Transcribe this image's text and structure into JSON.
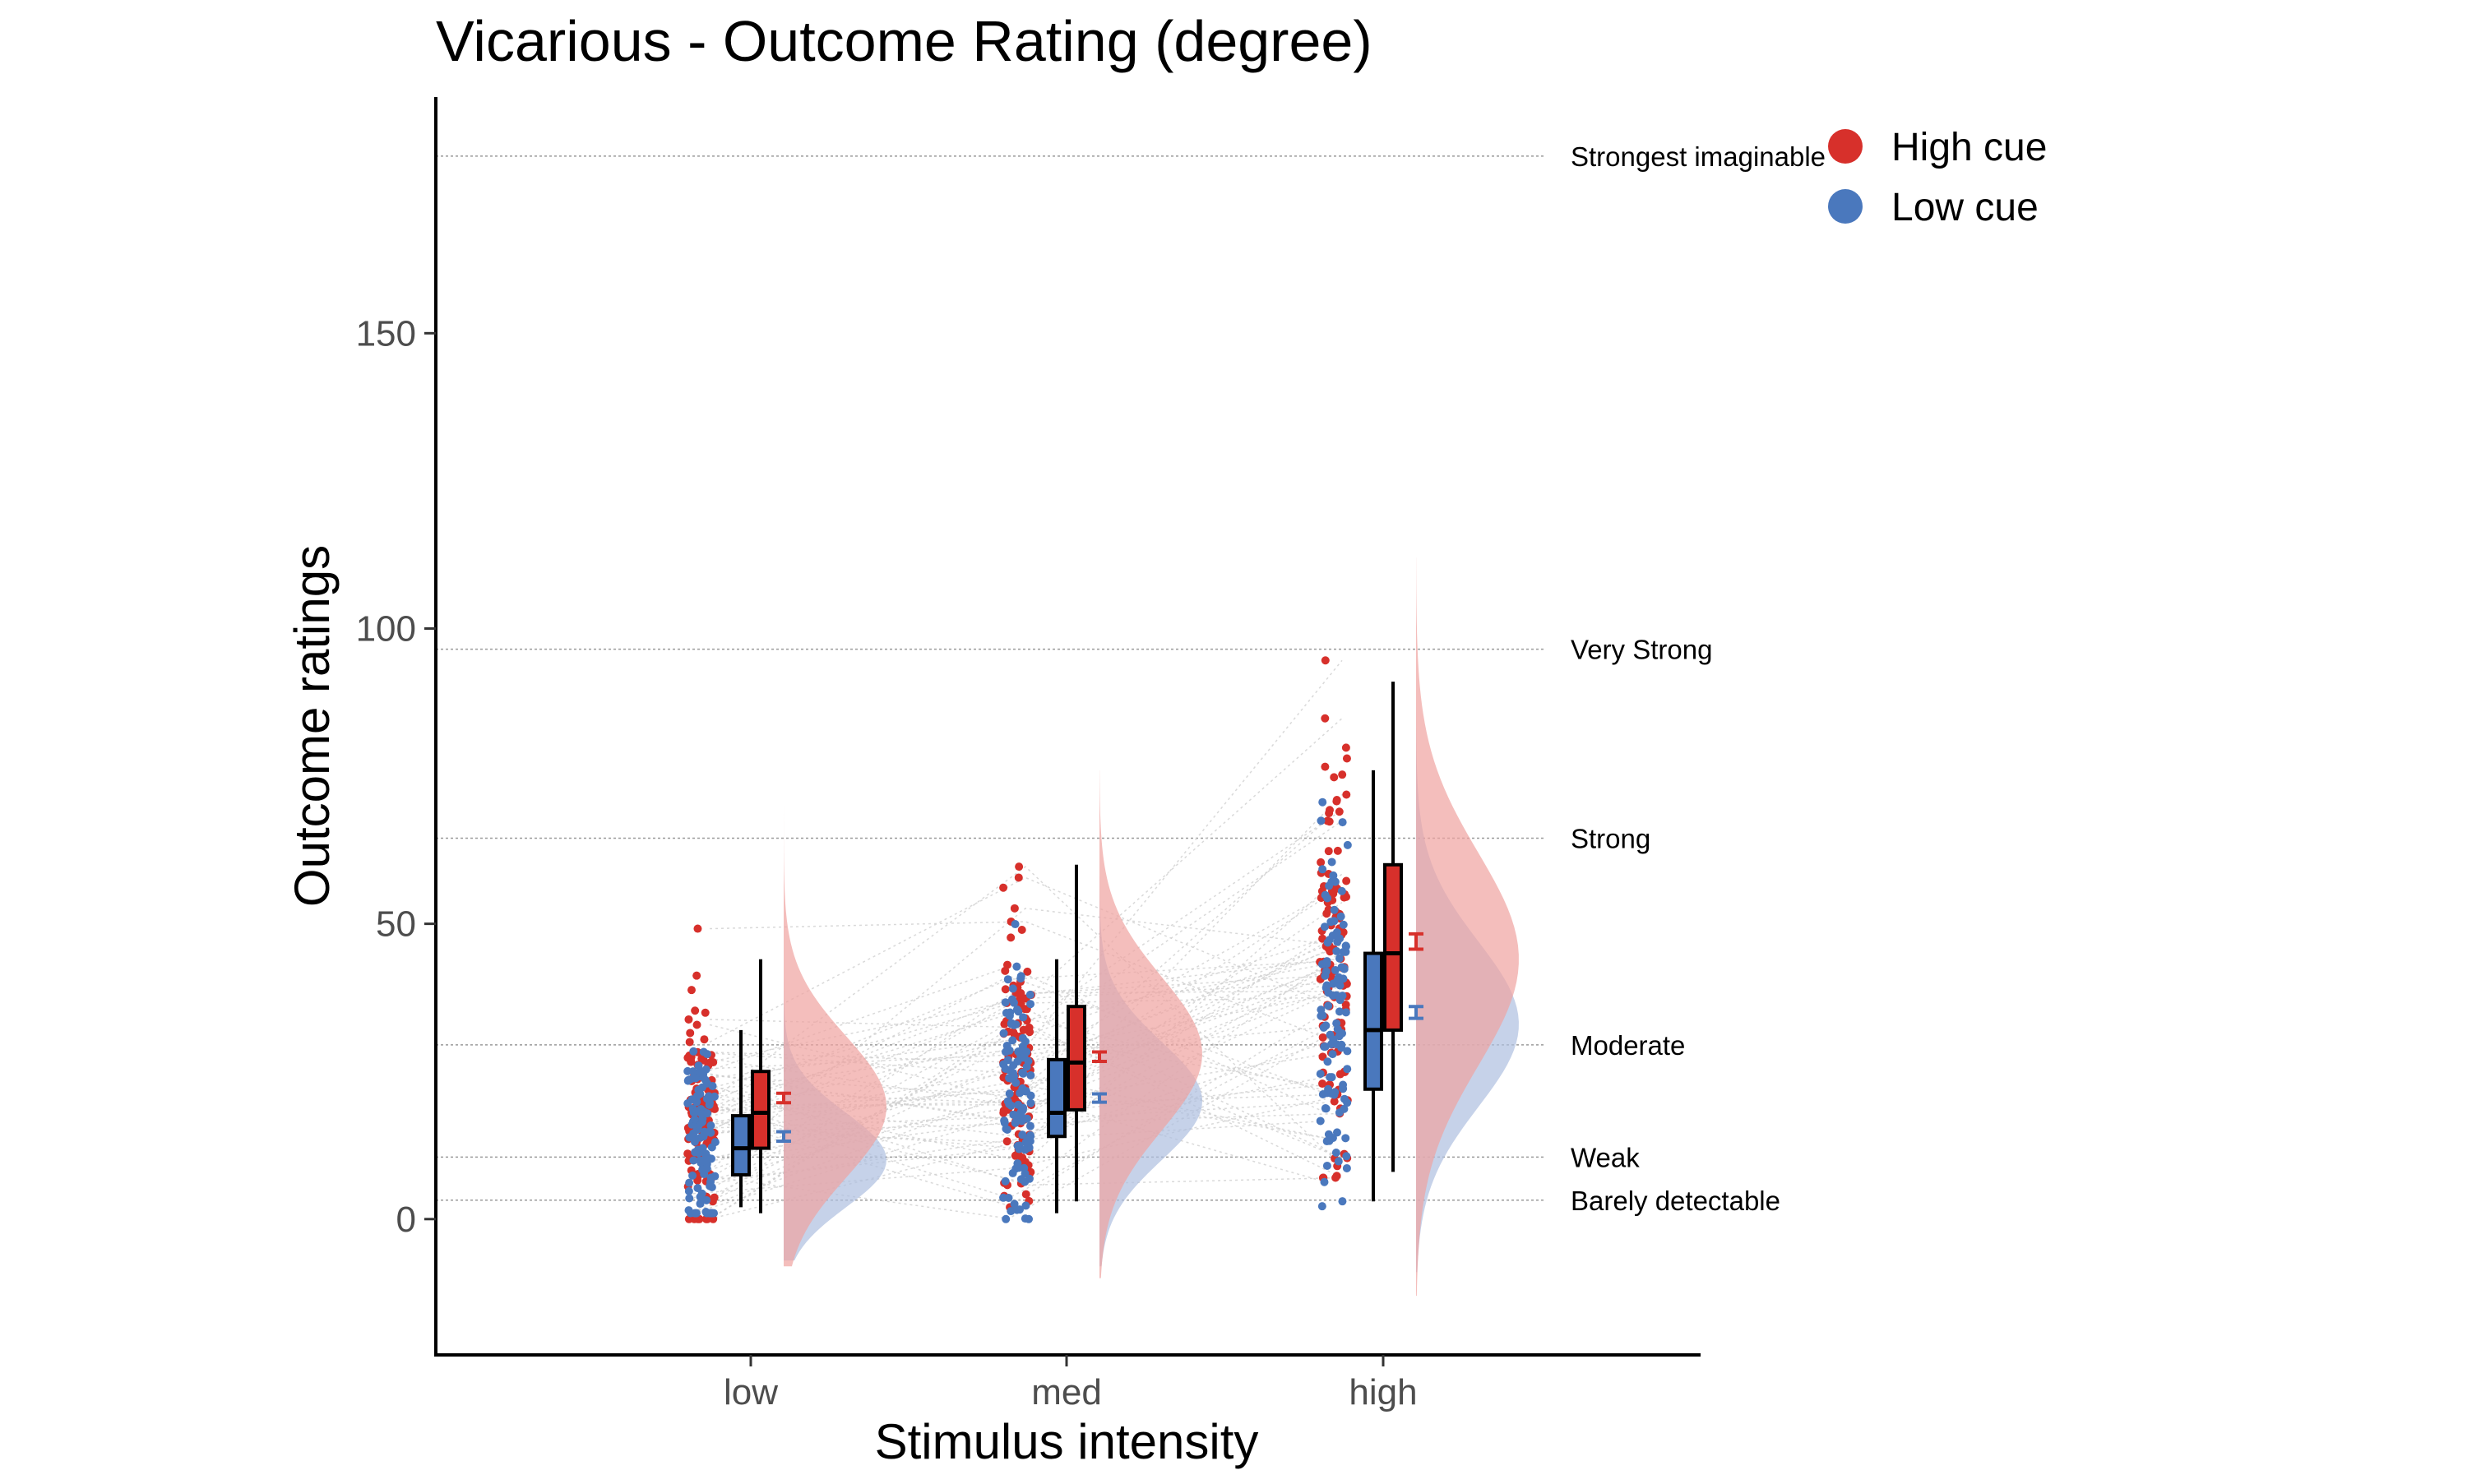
{
  "chart_data": {
    "type": "raincloud",
    "title": "Vicarious - Outcome Rating (degree)",
    "xlabel": "Stimulus intensity",
    "ylabel": "Outcome ratings",
    "categories": [
      "low",
      "med",
      "high"
    ],
    "yticks": [
      0,
      50,
      100,
      150
    ],
    "ylim": [
      -23,
      190
    ],
    "legend_position": "top-right",
    "reference_lines": [
      {
        "label": "Strongest imaginable",
        "value": 180
      },
      {
        "label": "Very Strong",
        "value": 96.5
      },
      {
        "label": "Strong",
        "value": 64.5
      },
      {
        "label": "Moderate",
        "value": 29.5
      },
      {
        "label": "Weak",
        "value": 10.5
      },
      {
        "label": "Barely detectable",
        "value": 3.2
      }
    ],
    "series": [
      {
        "name": "High cue",
        "color": "#d7302b",
        "fill": "#f0a3a0",
        "mean": [
          20.5,
          27.5,
          47
        ],
        "se": [
          0.8,
          0.8,
          1.3
        ],
        "box": [
          {
            "q1": 12,
            "median": 18,
            "q3": 25,
            "wmin": 1,
            "wmax": 44
          },
          {
            "q1": 18.5,
            "median": 26.5,
            "q3": 36,
            "wmin": 3,
            "wmax": 60
          },
          {
            "q1": 32,
            "median": 45,
            "q3": 60,
            "wmin": 8,
            "wmax": 91
          }
        ],
        "density": [
          {
            "mode": 19,
            "sd": 12,
            "min": -8,
            "max": 70
          },
          {
            "mode": 28,
            "sd": 13,
            "min": -10,
            "max": 76
          },
          {
            "mode": 44,
            "sd": 18,
            "min": -13,
            "max": 112
          }
        ],
        "points_center": [
          18,
          27,
          45
        ],
        "points_spread": [
          11,
          13,
          18
        ]
      },
      {
        "name": "Low cue",
        "color": "#4a78bd",
        "fill": "#aebfdf",
        "mean": [
          14,
          20.5,
          35
        ],
        "se": [
          0.8,
          0.7,
          1.0
        ],
        "box": [
          {
            "q1": 7.5,
            "median": 12,
            "q3": 17.5,
            "wmin": 2,
            "wmax": 32
          },
          {
            "q1": 14,
            "median": 18,
            "q3": 27,
            "wmin": 1,
            "wmax": 44
          },
          {
            "q1": 22,
            "median": 32,
            "q3": 45,
            "wmin": 3,
            "wmax": 76
          }
        ],
        "density": [
          {
            "mode": 10,
            "sd": 8,
            "min": -7,
            "max": 55
          },
          {
            "mode": 20,
            "sd": 10,
            "min": -8,
            "max": 58
          },
          {
            "mode": 33,
            "sd": 14,
            "min": -9,
            "max": 88
          }
        ],
        "points_center": [
          13,
          20,
          33
        ],
        "points_spread": [
          9,
          11,
          16
        ]
      }
    ]
  }
}
